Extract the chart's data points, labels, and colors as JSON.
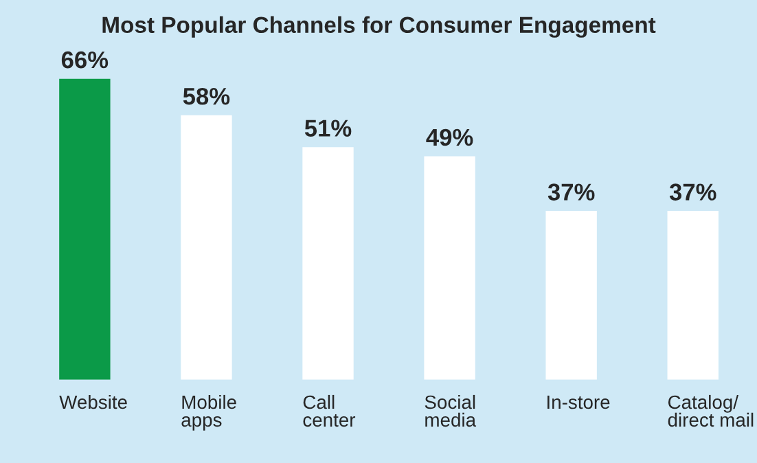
{
  "chart_data": {
    "type": "bar",
    "title": "Most Popular Channels for Consumer Engagement",
    "categories": [
      "Website",
      "Mobile\napps",
      "Call\ncenter",
      "Social\nmedia",
      "In-store",
      "Catalog/\ndirect mail"
    ],
    "values": [
      66,
      58,
      51,
      49,
      37,
      37
    ],
    "colors": [
      "#0b9a48",
      "#ffffff",
      "#ffffff",
      "#ffffff",
      "#ffffff",
      "#ffffff"
    ],
    "value_labels": [
      "66%",
      "58%",
      "51%",
      "49%",
      "37%",
      "37%"
    ],
    "grid": false,
    "legend": false
  }
}
